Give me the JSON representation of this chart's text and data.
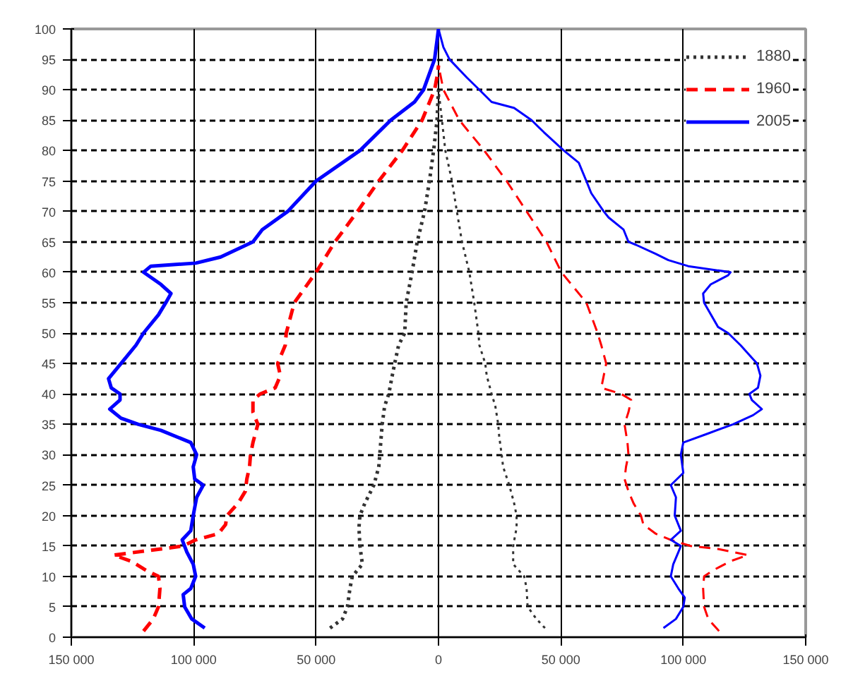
{
  "chart_data": {
    "type": "line",
    "xlim": [
      -150000,
      150000
    ],
    "xticks": [
      {
        "value": -150000,
        "label": "150 000"
      },
      {
        "value": -100000,
        "label": "100 000"
      },
      {
        "value": -50000,
        "label": "50 000"
      },
      0,
      {
        "value": 50000,
        "label": "50 000"
      },
      {
        "value": 100000,
        "label": "100 000"
      },
      {
        "value": 150000,
        "label": "150 000"
      }
    ],
    "ylim": [
      0,
      100
    ],
    "yticks": [
      0,
      5,
      10,
      15,
      20,
      25,
      30,
      35,
      40,
      45,
      50,
      55,
      60,
      65,
      70,
      75,
      80,
      85,
      90,
      95,
      100
    ],
    "grid": true,
    "legend": "top right",
    "series": [
      {
        "name": "1880",
        "color": "#333333",
        "line_style": "dotted",
        "x": [
          -44300,
          -39200,
          -37200,
          -36200,
          -35200,
          -31100,
          -32100,
          -32500,
          -32100,
          -30100,
          -26400,
          -24400,
          -24000,
          -23400,
          -23000,
          -22000,
          -20300,
          -18900,
          -17900,
          -16300,
          -13800,
          -13200,
          -10800,
          -8700,
          -5700,
          -3700,
          -2000,
          -600,
          0
        ],
        "values": [
          1.5,
          3,
          5,
          8,
          10,
          12,
          15,
          18,
          20,
          22,
          25,
          28,
          30,
          33,
          35,
          38,
          40,
          43,
          45,
          48,
          50,
          55,
          60,
          65,
          70,
          75,
          80,
          85,
          90
        ]
      },
      {
        "color": "#333333",
        "line_style": "dotted",
        "x": [
          43500,
          40000,
          36400,
          36000,
          35000,
          30500,
          30500,
          31900,
          31900,
          30900,
          28900,
          26400,
          25800,
          24800,
          24400,
          23200,
          21700,
          19700,
          19100,
          16700,
          16300,
          14600,
          12600,
          9600,
          7500,
          5500,
          2800,
          1400,
          0
        ],
        "values": [
          1.5,
          3,
          5,
          8,
          10,
          12,
          15,
          18,
          20,
          22,
          25,
          28,
          30,
          33,
          35,
          38,
          40,
          43,
          45,
          48,
          50,
          55,
          60,
          65,
          70,
          75,
          80,
          85,
          90
        ]
      },
      {
        "name": "1960",
        "color": "#ff0000",
        "line_style": "dashed",
        "x": [
          -120500,
          -116500,
          -114400,
          -113800,
          -114400,
          -119500,
          -125600,
          -132700,
          -113400,
          -104300,
          -99200,
          -90000,
          -87000,
          -86400,
          -81900,
          -78900,
          -78300,
          -77200,
          -76800,
          -75800,
          -73800,
          -75800,
          -75800,
          -72800,
          -66700,
          -64600,
          -65700,
          -62600,
          -62200,
          -58900,
          -50000,
          -42300,
          -33100,
          -24400,
          -14800,
          -6700,
          -1600,
          -200,
          0
        ],
        "values": [
          1,
          3,
          5,
          8,
          10,
          11,
          12.5,
          13.5,
          14.5,
          15,
          16,
          17,
          18.5,
          20,
          22,
          24,
          26,
          28,
          30,
          32,
          35,
          37,
          39,
          40,
          41,
          43,
          45,
          48,
          50,
          55,
          60,
          65,
          70,
          75,
          80,
          85,
          90,
          93,
          94
        ]
      },
      {
        "color": "#ff0000",
        "line_style": "dashed",
        "x": [
          114600,
          110200,
          108500,
          108100,
          108500,
          112200,
          119300,
          126400,
          114200,
          103000,
          94900,
          88800,
          83700,
          82700,
          79700,
          77600,
          76000,
          76600,
          77600,
          77200,
          76000,
          77600,
          78700,
          74600,
          66500,
          67500,
          68500,
          66500,
          65000,
          60400,
          50200,
          44100,
          36000,
          27800,
          18700,
          8500,
          2000,
          0
        ],
        "values": [
          1,
          3,
          5,
          8,
          10,
          11,
          12.5,
          13.5,
          14.5,
          15,
          16,
          17,
          18.5,
          20,
          22,
          24,
          26,
          28,
          30,
          32,
          35,
          37,
          39,
          40,
          41,
          43,
          45,
          48,
          50,
          55,
          60,
          65,
          70,
          75,
          80,
          85,
          90,
          94
        ]
      },
      {
        "name": "2005",
        "color": "#0000ff",
        "line_style": "solid",
        "x": [
          -95500,
          -100800,
          -103700,
          -104300,
          -101200,
          -99200,
          -100200,
          -102800,
          -104700,
          -101200,
          -100200,
          -98800,
          -96100,
          -99600,
          -100200,
          -98800,
          -101200,
          -113400,
          -122600,
          -129700,
          -134300,
          -130100,
          -130100,
          -133700,
          -134800,
          -129700,
          -123600,
          -120500,
          -114400,
          -111400,
          -109300,
          -113400,
          -120500,
          -117500,
          -99200,
          -89000,
          -75800,
          -72000,
          -61600,
          -50000,
          -32100,
          -19500,
          -9800,
          -6100,
          -1600,
          0
        ],
        "values": [
          1.5,
          3,
          5,
          7,
          8,
          10,
          12,
          14,
          16,
          17.5,
          20,
          23,
          25,
          26,
          28,
          30,
          32,
          34,
          35,
          36,
          37.5,
          39,
          40,
          41,
          42.5,
          45,
          48,
          50,
          53,
          55,
          56.5,
          58,
          60,
          61,
          61.5,
          62.5,
          65,
          67,
          70,
          75,
          80,
          85,
          88,
          90,
          95,
          100
        ]
      },
      {
        "color": "#0000ff",
        "line_style": "solid",
        "x": [
          91900,
          97000,
          100000,
          100600,
          98000,
          94900,
          95900,
          98000,
          99000,
          94900,
          99000,
          96500,
          97000,
          94900,
          100000,
          99000,
          100000,
          110200,
          120300,
          128500,
          132100,
          128000,
          127000,
          130500,
          131500,
          130100,
          123400,
          118300,
          114200,
          108500,
          108100,
          111200,
          118300,
          119300,
          102000,
          93900,
          88800,
          80700,
          77600,
          75600,
          69500,
          67500,
          62400,
          60400,
          57300,
          51200,
          43100,
          38000,
          30900,
          21700,
          16700,
          11600,
          4500,
          2000,
          0
        ],
        "values": [
          1.5,
          3,
          5,
          6.5,
          8,
          10,
          12,
          14,
          15,
          16,
          17.5,
          20,
          23,
          25,
          27,
          30,
          32,
          33.5,
          35,
          36.5,
          37.5,
          39,
          40,
          41,
          43,
          45,
          48,
          50,
          51,
          55,
          56.5,
          58,
          59.5,
          60,
          61,
          62,
          63,
          64.5,
          65,
          67,
          69,
          70,
          73,
          75,
          78,
          80,
          83,
          85,
          87,
          88,
          90,
          92,
          95,
          97,
          100
        ]
      }
    ]
  }
}
